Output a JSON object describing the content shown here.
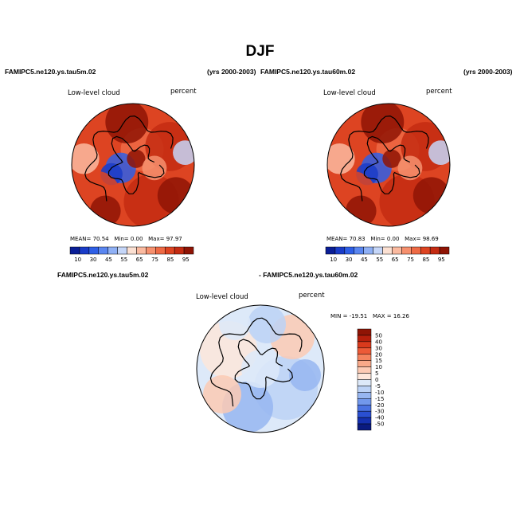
{
  "figure": {
    "season": "DJF",
    "colors": {
      "coastline": "#000000",
      "background": "#ffffff"
    }
  },
  "chart_data": [
    {
      "type": "heatmap",
      "projection": "north-polar-stereographic",
      "case_name": "FAMIPC5.ne120.ys.tau5m.02",
      "years": "(yrs 2000-2003)",
      "variable": "Low-level cloud",
      "units": "percent",
      "stats": {
        "mean_label": "MEAN=",
        "mean": "70.54",
        "min_label": "Min=",
        "min": "0.00",
        "max_label": "Max=",
        "max": "97.97"
      },
      "colorbar": {
        "orientation": "horizontal",
        "tick_labels": [
          "10",
          "30",
          "45",
          "55",
          "65",
          "75",
          "85",
          "95"
        ],
        "colors": [
          "#0a1e96",
          "#1a3cc8",
          "#2f5fe6",
          "#5a86f0",
          "#8fb0f5",
          "#c5d6f8",
          "#fbe0d2",
          "#fbbaa0",
          "#f6906e",
          "#ee6a45",
          "#dd4422",
          "#c42b12",
          "#8f1405"
        ]
      }
    },
    {
      "type": "heatmap",
      "projection": "north-polar-stereographic",
      "case_name": "FAMIPC5.ne120.ys.tau60m.02",
      "years": "(yrs 2000-2003)",
      "variable": "Low-level cloud",
      "units": "percent",
      "stats": {
        "mean_label": "MEAN=",
        "mean": "70.83",
        "min_label": "Min=",
        "min": "0.00",
        "max_label": "Max=",
        "max": "98.69"
      },
      "colorbar": {
        "orientation": "horizontal",
        "tick_labels": [
          "10",
          "30",
          "45",
          "55",
          "65",
          "75",
          "85",
          "95"
        ],
        "colors": [
          "#0a1e96",
          "#1a3cc8",
          "#2f5fe6",
          "#5a86f0",
          "#8fb0f5",
          "#c5d6f8",
          "#fbe0d2",
          "#fbbaa0",
          "#f6906e",
          "#ee6a45",
          "#dd4422",
          "#c42b12",
          "#8f1405"
        ]
      }
    },
    {
      "type": "heatmap",
      "projection": "north-polar-stereographic",
      "case_name": "FAMIPC5.ne120.ys.tau5m.02",
      "subtract_case": "- FAMIPC5.ne120.ys.tau60m.02",
      "variable": "Low-level cloud",
      "units": "percent",
      "stats": {
        "min_label": "MIN =",
        "min": "-19.51",
        "max_label": "MAX =",
        "max": "16.26"
      },
      "colorbar": {
        "orientation": "vertical",
        "tick_labels": [
          "50",
          "40",
          "30",
          "20",
          "15",
          "10",
          "5",
          "0",
          "-5",
          "-10",
          "-15",
          "-20",
          "-30",
          "-40",
          "-50"
        ],
        "colors": [
          "#8f1405",
          "#b51f0c",
          "#d93a1c",
          "#ec5a37",
          "#f4835e",
          "#f9a989",
          "#fccab4",
          "#fde6da",
          "#dde9f9",
          "#bcd2f6",
          "#97b6f1",
          "#7298ec",
          "#4a72e2",
          "#2a4fd2",
          "#1530b0",
          "#0a1a80"
        ]
      }
    }
  ]
}
